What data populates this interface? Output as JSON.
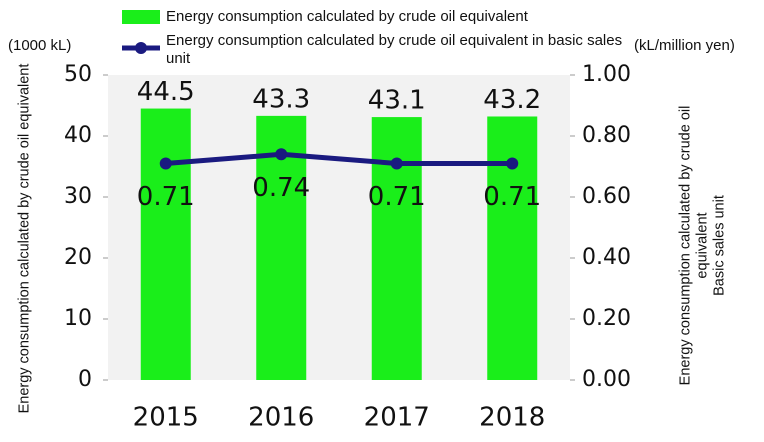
{
  "chart_data": {
    "type": "bar",
    "categories": [
      "2015",
      "2016",
      "2017",
      "2018"
    ],
    "series": [
      {
        "name": "Energy consumption calculated by crude oil equivalent",
        "color": "#1aee1a",
        "type": "bar",
        "values": [
          44.5,
          43.3,
          43.1,
          43.2
        ]
      },
      {
        "name": "Energy consumption calculated by crude oil equivalent in basic sales unit",
        "color": "#1a1a80",
        "type": "line",
        "axis": "y2",
        "values": [
          0.71,
          0.74,
          0.71,
          0.71
        ]
      }
    ],
    "ylabel": "Energy consumption calculated by crude oil equivalent",
    "y2label": "Energy consumption calculated by crude oil equivalent\nBasic sales unit",
    "yunit": "(1000 kL)",
    "y2unit": "(kL/million yen)",
    "ylim": [
      0,
      50
    ],
    "yticks": [
      0,
      10,
      20,
      30,
      40,
      50
    ],
    "y2lim": [
      0,
      1
    ],
    "y2ticks": [
      {
        "value": 0,
        "label": "0.00"
      },
      {
        "value": 0.2,
        "label": "0.20"
      },
      {
        "value": 0.4,
        "label": "0.40"
      },
      {
        "value": 0.6,
        "label": "0.60"
      },
      {
        "value": 0.8,
        "label": "0.80"
      },
      {
        "value": 1,
        "label": "1.00"
      }
    ],
    "plot_background": "#f2f2f2",
    "grid": false
  }
}
